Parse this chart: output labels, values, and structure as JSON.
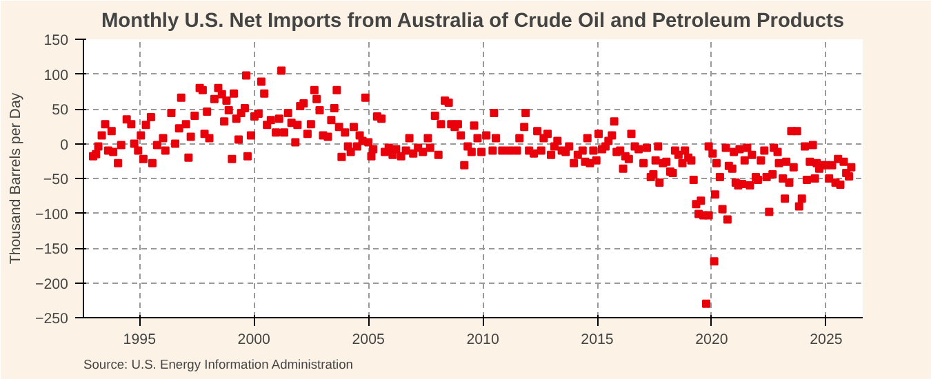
{
  "chart_data": {
    "type": "scatter",
    "title": "Monthly U.S. Net Imports from Australia of Crude Oil and Petroleum Products",
    "ylabel": "Thousand Barrels per Day",
    "annotations": [
      "Source: U.S. Energy Information Administration"
    ],
    "xlim": [
      1992.55,
      2026.6
    ],
    "xticks": [
      1995,
      2000,
      2005,
      2010,
      2015,
      2020,
      2025
    ],
    "ylim": [
      -250,
      150
    ],
    "yticks": [
      -250,
      -200,
      -150,
      -100,
      -50,
      0,
      50,
      100,
      150
    ],
    "grid": true,
    "marker": "square",
    "series": [
      {
        "color": "#e8000b",
        "x": [
          1992.97,
          1993.1,
          1993.2,
          1993.35,
          1993.5,
          1993.63,
          1993.78,
          1993.85,
          1994.06,
          1994.2,
          1994.44,
          1994.64,
          1994.77,
          1994.94,
          1995.06,
          1995.17,
          1995.28,
          1995.5,
          1995.56,
          1995.77,
          1996.03,
          1996.13,
          1996.39,
          1996.56,
          1996.73,
          1996.82,
          1997.03,
          1997.14,
          1997.24,
          1997.41,
          1997.63,
          1997.76,
          1997.84,
          1997.95,
          1998.05,
          1998.27,
          1998.44,
          1998.6,
          1998.7,
          1998.8,
          1998.9,
          1999.04,
          1999.12,
          1999.23,
          1999.33,
          1999.44,
          1999.6,
          1999.72,
          1999.66,
          1999.87,
          2000.02,
          2000.2,
          2000.32,
          2000.45,
          2000.57,
          2000.74,
          2000.96,
          2001.1,
          2001.2,
          2001.32,
          2001.49,
          2001.64,
          2001.81,
          2001.9,
          2002.02,
          2002.17,
          2002.34,
          2002.49,
          2002.64,
          2002.74,
          2002.87,
          2003.02,
          2003.23,
          2003.38,
          2003.51,
          2003.62,
          2003.72,
          2003.83,
          2003.98,
          2004.11,
          2004.23,
          2004.36,
          2004.51,
          2004.62,
          2004.74,
          2004.87,
          2005.0,
          2005.13,
          2005.21,
          2005.38,
          2005.57,
          2005.72,
          2005.89,
          2006.06,
          2006.21,
          2006.43,
          2006.64,
          2006.79,
          2006.96,
          2007.17,
          2007.38,
          2007.6,
          2007.7,
          2007.91,
          2008.06,
          2008.17,
          2008.34,
          2008.51,
          2008.62,
          2008.77,
          2008.91,
          2009.04,
          2009.19,
          2009.34,
          2009.51,
          2009.62,
          2009.77,
          2009.94,
          2010.15,
          2010.43,
          2010.49,
          2010.57,
          2010.85,
          2011.17,
          2011.49,
          2011.6,
          2011.81,
          2011.87,
          2012.02,
          2012.23,
          2012.38,
          2012.55,
          2012.66,
          2012.83,
          2012.98,
          2013.13,
          2013.26,
          2013.45,
          2013.62,
          2013.77,
          2013.98,
          2014.15,
          2014.36,
          2014.47,
          2014.57,
          2014.68,
          2014.83,
          2014.96,
          2015.06,
          2015.21,
          2015.36,
          2015.49,
          2015.64,
          2015.74,
          2015.85,
          2016.0,
          2016.13,
          2016.23,
          2016.38,
          2016.49,
          2016.64,
          2016.81,
          2017.02,
          2017.17,
          2017.34,
          2017.45,
          2017.55,
          2017.66,
          2017.72,
          2017.87,
          2018.02,
          2018.19,
          2018.3,
          2018.4,
          2018.55,
          2018.72,
          2018.83,
          2018.98,
          2019.11,
          2019.21,
          2019.32,
          2019.43,
          2019.53,
          2019.64,
          2019.76,
          2019.87,
          2019.87,
          2020.04,
          2020.11,
          2020.15,
          2020.21,
          2020.36,
          2020.47,
          2020.62,
          2020.69,
          2020.75,
          2020.9,
          2020.97,
          2021.05,
          2021.16,
          2021.22,
          2021.33,
          2021.44,
          2021.55,
          2021.67,
          2021.76,
          2021.93,
          2022.02,
          2022.15,
          2022.3,
          2022.4,
          2022.51,
          2022.66,
          2022.72,
          2022.88,
          2022.94,
          2023.11,
          2023.2,
          2023.26,
          2023.39,
          2023.48,
          2023.58,
          2023.73,
          2023.82,
          2023.94,
          2024.07,
          2024.16,
          2024.29,
          2024.42,
          2024.51,
          2024.59,
          2024.7,
          2024.83,
          2024.98,
          2025.13,
          2025.26,
          2025.41,
          2025.52,
          2025.62,
          2025.77,
          2025.88,
          2026.0,
          2026.1
        ],
        "values": [
          -18,
          -15,
          -4,
          12,
          28,
          -10,
          18,
          -12,
          -28,
          -2,
          35,
          28,
          0,
          -10,
          12,
          -22,
          27,
          38,
          -28,
          -2,
          8,
          -10,
          44,
          0,
          22,
          66,
          28,
          -20,
          10,
          40,
          80,
          77,
          14,
          46,
          8,
          64,
          80,
          71,
          32,
          62,
          48,
          -22,
          72,
          36,
          6,
          44,
          51,
          -18,
          98,
          12,
          39,
          43,
          89,
          72,
          27,
          34,
          16,
          36,
          105,
          16,
          44,
          30,
          2,
          27,
          54,
          58,
          14,
          28,
          77,
          64,
          48,
          12,
          10,
          34,
          51,
          77,
          24,
          -19,
          16,
          -4,
          -12,
          24,
          -4,
          12,
          4,
          66,
          2,
          -18,
          -8,
          39,
          36,
          -12,
          -6,
          -16,
          -8,
          -18,
          -10,
          8,
          -14,
          -6,
          -12,
          8,
          -6,
          40,
          -16,
          28,
          62,
          59,
          28,
          24,
          28,
          12,
          -31,
          -4,
          -12,
          26,
          8,
          -12,
          12,
          -10,
          44,
          8,
          -10,
          -10,
          -10,
          8,
          24,
          44,
          -10,
          -14,
          18,
          -10,
          8,
          14,
          -16,
          -4,
          4,
          -10,
          -12,
          -4,
          -28,
          -16,
          -10,
          -26,
          8,
          -28,
          -10,
          -24,
          14,
          -8,
          -4,
          4,
          12,
          32,
          -12,
          -10,
          -36,
          -18,
          -22,
          14,
          -4,
          -8,
          -28,
          -6,
          -48,
          -44,
          -24,
          -4,
          -56,
          -28,
          -26,
          -40,
          -42,
          -10,
          -16,
          -28,
          -10,
          -20,
          -24,
          -52,
          -87,
          -101,
          -82,
          -103,
          -230,
          -103,
          -4,
          -14,
          -169,
          -73,
          -28,
          -48,
          -94,
          -6,
          -109,
          -32,
          -36,
          -12,
          -56,
          -60,
          -8,
          -58,
          -24,
          -6,
          -60,
          -16,
          -48,
          -52,
          -24,
          -10,
          -48,
          -98,
          -44,
          -6,
          -12,
          -28,
          -50,
          -79,
          -26,
          -56,
          18,
          -34,
          18,
          -90,
          -79,
          -4,
          -52,
          -26,
          -2,
          -50,
          -28,
          -36,
          -31,
          -31,
          -50,
          -31,
          -56,
          -22,
          -59,
          -26,
          -42,
          -47,
          -34
        ]
      }
    ]
  }
}
